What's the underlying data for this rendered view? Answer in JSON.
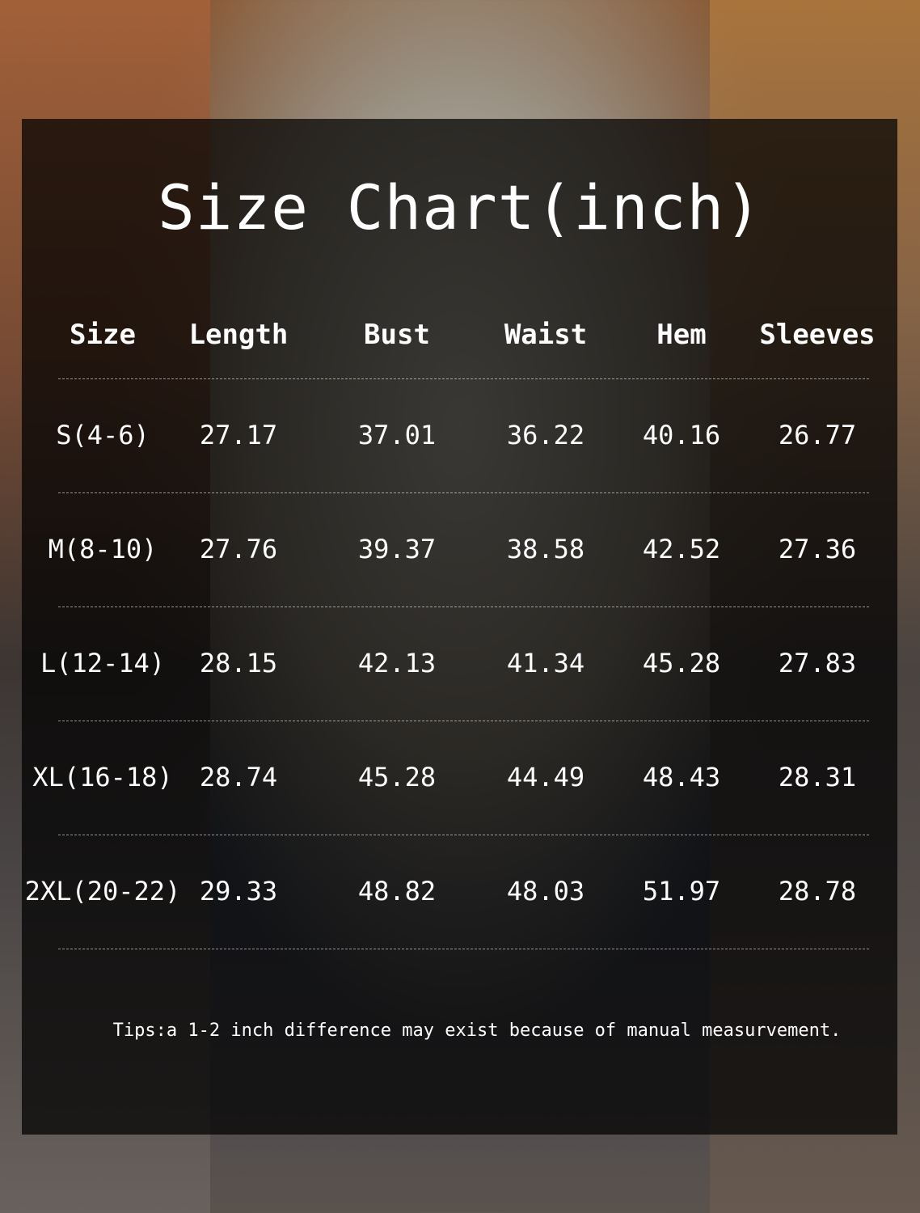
{
  "title": "Size Chart(inch)",
  "columns": [
    "Size",
    "Length",
    "Bust",
    "Waist",
    "Hem",
    "Sleeves"
  ],
  "rows": [
    [
      "S(4-6)",
      "27.17",
      "37.01",
      "36.22",
      "40.16",
      "26.77"
    ],
    [
      "M(8-10)",
      "27.76",
      "39.37",
      "38.58",
      "42.52",
      "27.36"
    ],
    [
      "L(12-14)",
      "28.15",
      "42.13",
      "41.34",
      "45.28",
      "27.83"
    ],
    [
      "XL(16-18)",
      "28.74",
      "45.28",
      "44.49",
      "48.43",
      "28.31"
    ],
    [
      "2XL(20-22)",
      "29.33",
      "48.82",
      "48.03",
      "51.97",
      "28.78"
    ]
  ],
  "tips": "Tips:a 1-2 inch difference may exist because of manual measurvement."
}
